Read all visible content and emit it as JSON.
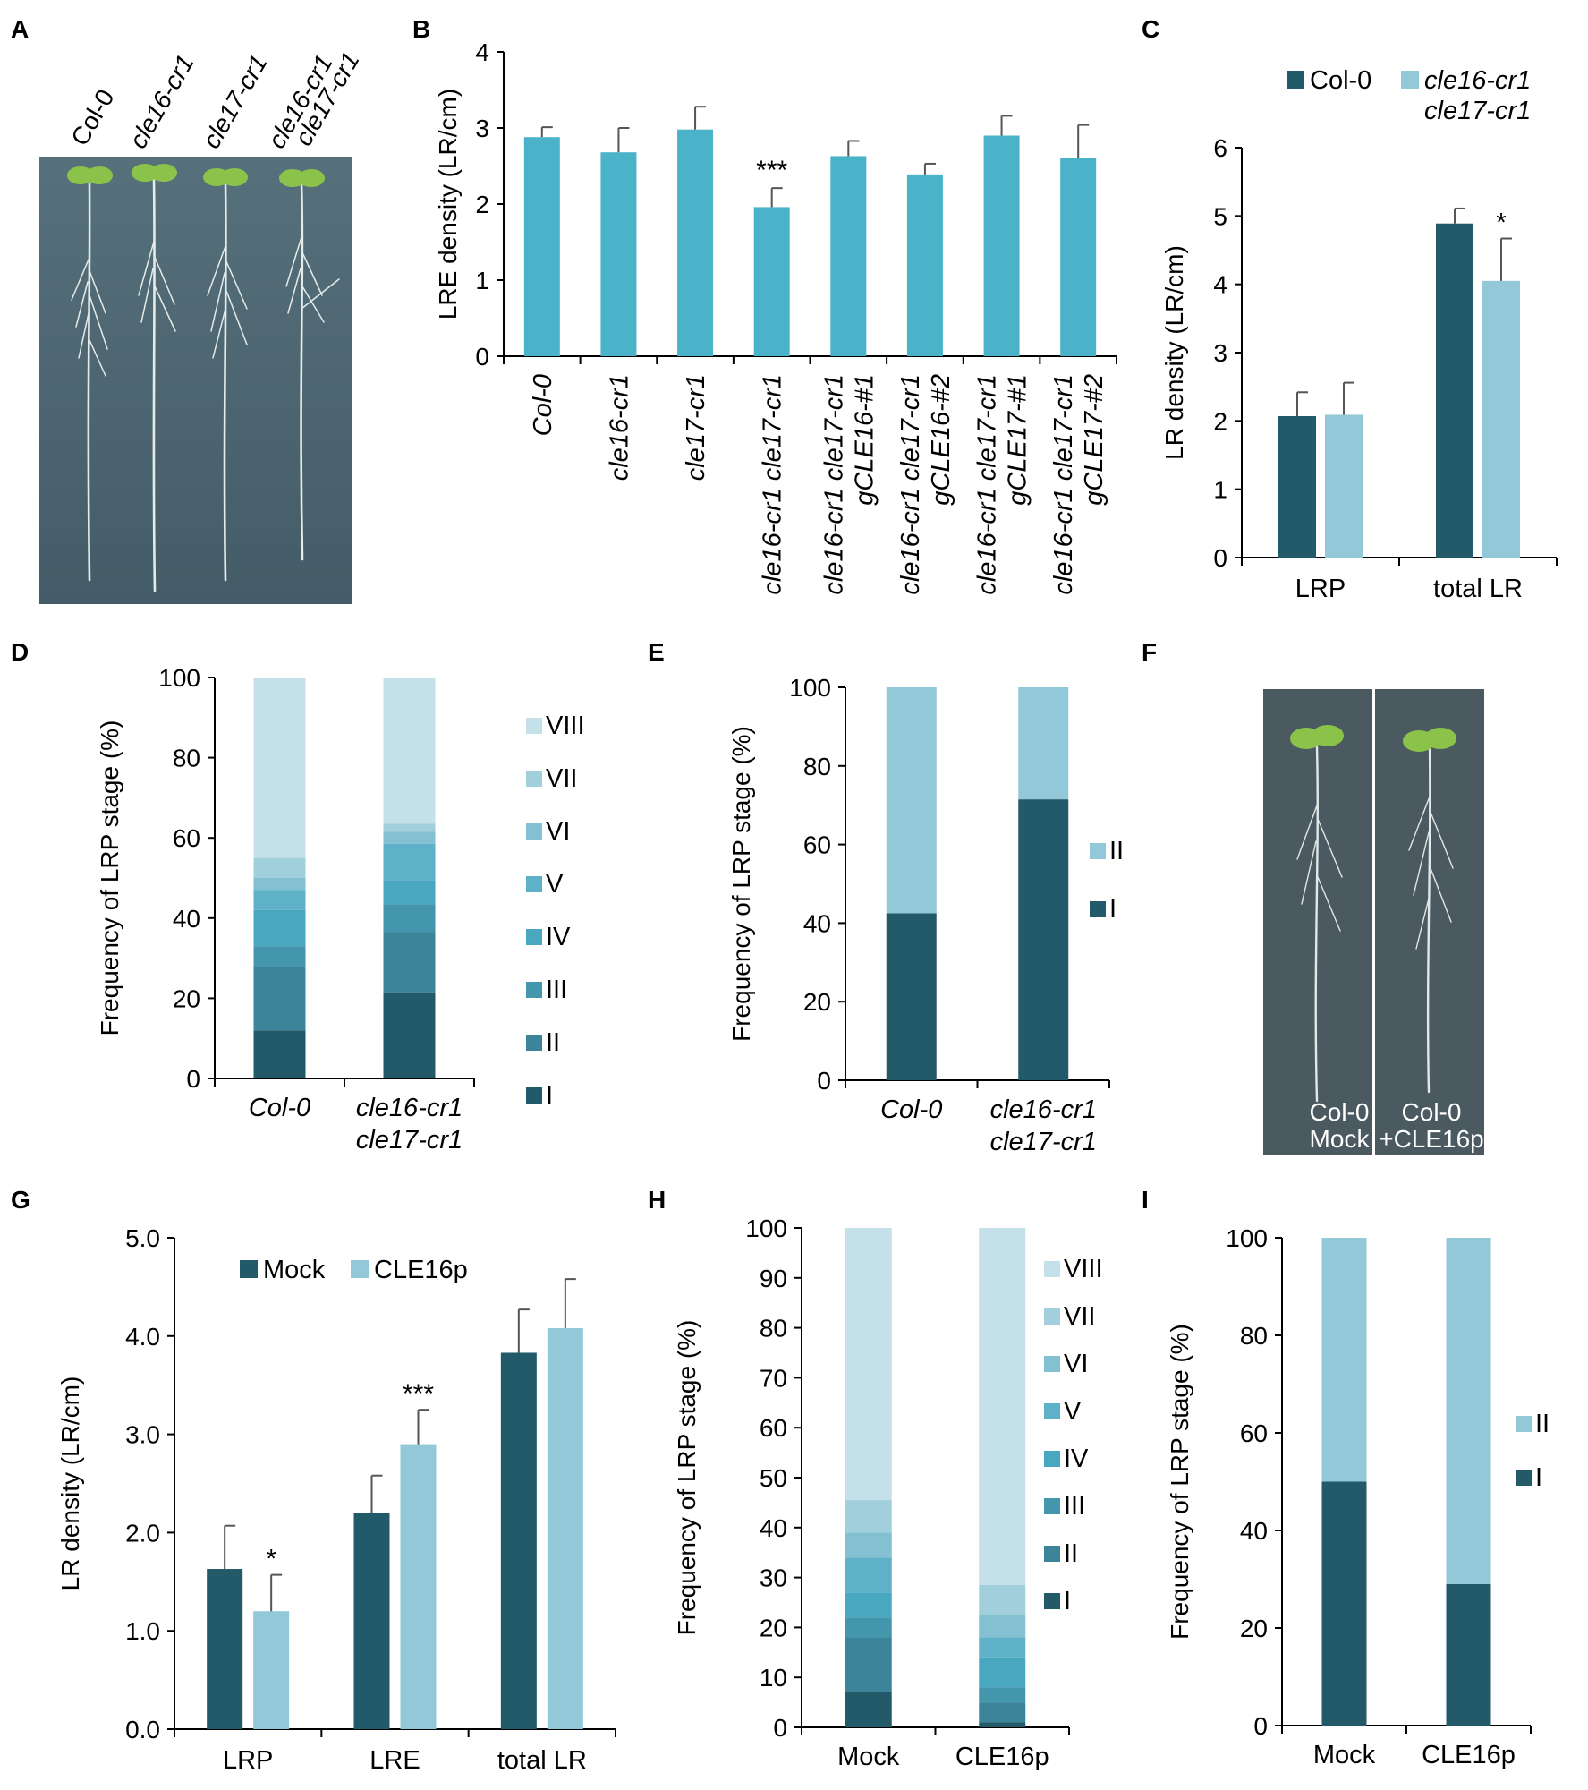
{
  "colors": {
    "teal": "#4bb3c9",
    "dark": "#235a69",
    "light": "#92c8d8",
    "stages": [
      "#235a69",
      "#3b8499",
      "#4496ad",
      "#4aa7c0",
      "#5fb1c7",
      "#82c0d2",
      "#a1cfdc",
      "#c4e0e8"
    ]
  },
  "panels": {
    "A": {
      "label": "A",
      "lines": [
        "Col-0",
        "cle16-cr1",
        "cle17-cr1",
        "cle16-cr1",
        "cle17-cr1"
      ]
    },
    "D": {
      "label": "D"
    },
    "E": {
      "label": "E"
    },
    "F": {
      "label": "F",
      "left_caption": [
        "Col-0",
        "Mock"
      ],
      "right_caption": [
        "Col-0",
        "+CLE16p"
      ]
    },
    "H": {
      "label": "H"
    },
    "I": {
      "label": "I"
    }
  },
  "chart_data": [
    {
      "id": "B",
      "label": "B",
      "type": "bar",
      "ylabel": "LRE density (LR/cm)",
      "ylim": [
        0,
        4
      ],
      "yticks": [
        0,
        1,
        2,
        3,
        4
      ],
      "categories": [
        "Col-0",
        "cle16-cr1",
        "cle17-cr1",
        "cle16-cr1 cle17-cr1",
        "cle16-cr1 cle17-cr1 gCLE16-#1",
        "cle16-cr1 cle17-cr1 gCLE16-#2",
        "cle16-cr1 cle17-cr1 gCLE17-#1",
        "cle16-cr1 cle17-cr1 gCLE17-#2"
      ],
      "category_lines": [
        [
          "Col-0"
        ],
        [
          "cle16-cr1"
        ],
        [
          "cle17-cr1"
        ],
        [
          "cle16-cr1 cle17-cr1"
        ],
        [
          "cle16-cr1 cle17-cr1",
          "gCLE16-#1"
        ],
        [
          "cle16-cr1 cle17-cr1",
          "gCLE16-#2"
        ],
        [
          "cle16-cr1 cle17-cr1",
          "gCLE17-#1"
        ],
        [
          "cle16-cr1 cle17-cr1",
          "gCLE17-#2"
        ]
      ],
      "values": [
        2.88,
        2.68,
        2.98,
        1.96,
        2.63,
        2.39,
        2.9,
        2.6
      ],
      "errors": [
        0.13,
        0.32,
        0.3,
        0.25,
        0.2,
        0.14,
        0.26,
        0.44
      ],
      "significance": [
        "",
        "",
        "",
        "***",
        "",
        "",
        "",
        ""
      ]
    },
    {
      "id": "C",
      "label": "C",
      "type": "bar",
      "ylabel": "LR density (LR/cm)",
      "ylim": [
        0,
        6
      ],
      "yticks": [
        0,
        1,
        2,
        3,
        4,
        5,
        6
      ],
      "categories": [
        "LRP",
        "total LR"
      ],
      "legend": [
        [
          "Col-0"
        ],
        [
          "cle16-cr1",
          "cle17-cr1"
        ]
      ],
      "series": [
        {
          "name": "Col-0",
          "values": [
            2.07,
            4.89
          ],
          "errors": [
            0.35,
            0.22
          ],
          "significance": [
            "",
            ""
          ]
        },
        {
          "name": "cle16-cr1 cle17-cr1",
          "values": [
            2.09,
            4.05
          ],
          "errors": [
            0.47,
            0.62
          ],
          "significance": [
            "",
            "*"
          ]
        }
      ]
    },
    {
      "id": "D",
      "label": "D",
      "type": "stacked_bar",
      "ylabel": "Frequency of LRP stage (%)",
      "ylim": [
        0,
        100
      ],
      "yticks": [
        0,
        20,
        40,
        60,
        80,
        100
      ],
      "categories": [
        "Col-0",
        "cle16-cr1 cle17-cr1"
      ],
      "category_lines": [
        [
          "Col-0"
        ],
        [
          "cle16-cr1",
          "cle17-cr1"
        ]
      ],
      "stages": [
        "I",
        "II",
        "III",
        "IV",
        "V",
        "VI",
        "VII",
        "VIII"
      ],
      "values": [
        [
          12,
          16,
          5,
          9,
          5,
          3,
          5,
          45
        ],
        [
          21.5,
          15,
          7,
          6,
          9,
          3,
          2,
          36.5
        ]
      ]
    },
    {
      "id": "E",
      "label": "E",
      "type": "stacked_bar",
      "ylabel": "Frequency of LRP stage  (%)",
      "ylim": [
        0,
        100
      ],
      "yticks": [
        0,
        20,
        40,
        60,
        80,
        100
      ],
      "categories": [
        "Col-0",
        "cle16-cr1 cle17-cr1"
      ],
      "category_lines": [
        [
          "Col-0"
        ],
        [
          "cle16-cr1",
          "cle17-cr1"
        ]
      ],
      "stages": [
        "I",
        "II"
      ],
      "values": [
        [
          42.5,
          57.5
        ],
        [
          71.5,
          28.5
        ]
      ]
    },
    {
      "id": "G",
      "label": "G",
      "type": "bar",
      "ylabel": "LR density (LR/cm)",
      "ylim": [
        0,
        5
      ],
      "yticks": [
        "0.0",
        "1.0",
        "2.0",
        "3.0",
        "4.0",
        "5.0"
      ],
      "categories": [
        "LRP",
        "LRE",
        "total LR"
      ],
      "legend": [
        [
          "Mock"
        ],
        [
          "CLE16p"
        ]
      ],
      "series": [
        {
          "name": "Mock",
          "values": [
            1.63,
            2.2,
            3.83
          ],
          "errors": [
            0.44,
            0.38,
            0.44
          ],
          "significance": [
            "",
            "",
            ""
          ]
        },
        {
          "name": "CLE16p",
          "values": [
            1.2,
            2.9,
            4.08
          ],
          "errors": [
            0.37,
            0.35,
            0.5
          ],
          "significance": [
            "*",
            "***",
            ""
          ]
        }
      ]
    },
    {
      "id": "H",
      "label": "H",
      "type": "stacked_bar",
      "ylabel": "Frequency of LRP stage  (%)",
      "ylim": [
        0,
        100
      ],
      "yticks": [
        0,
        10,
        20,
        30,
        40,
        50,
        60,
        70,
        80,
        90,
        100
      ],
      "categories": [
        "Mock",
        "CLE16p"
      ],
      "category_lines": [
        [
          "Mock"
        ],
        [
          "CLE16p"
        ]
      ],
      "stages": [
        "I",
        "II",
        "III",
        "IV",
        "V",
        "VI",
        "VII",
        "VIII"
      ],
      "values": [
        [
          7,
          11,
          4,
          5,
          7,
          5,
          6.5,
          54.5
        ],
        [
          1,
          4,
          3,
          6,
          4,
          4.5,
          6,
          71.5
        ]
      ]
    },
    {
      "id": "I",
      "label": "I",
      "type": "stacked_bar",
      "ylabel": "Frequency of LRP stage  (%)",
      "ylim": [
        0,
        100
      ],
      "yticks": [
        0,
        20,
        40,
        60,
        80,
        100
      ],
      "categories": [
        "Mock",
        "CLE16p"
      ],
      "category_lines": [
        [
          "Mock"
        ],
        [
          "CLE16p"
        ]
      ],
      "stages": [
        "I",
        "II"
      ],
      "values": [
        [
          50,
          50
        ],
        [
          29,
          71
        ]
      ]
    }
  ]
}
